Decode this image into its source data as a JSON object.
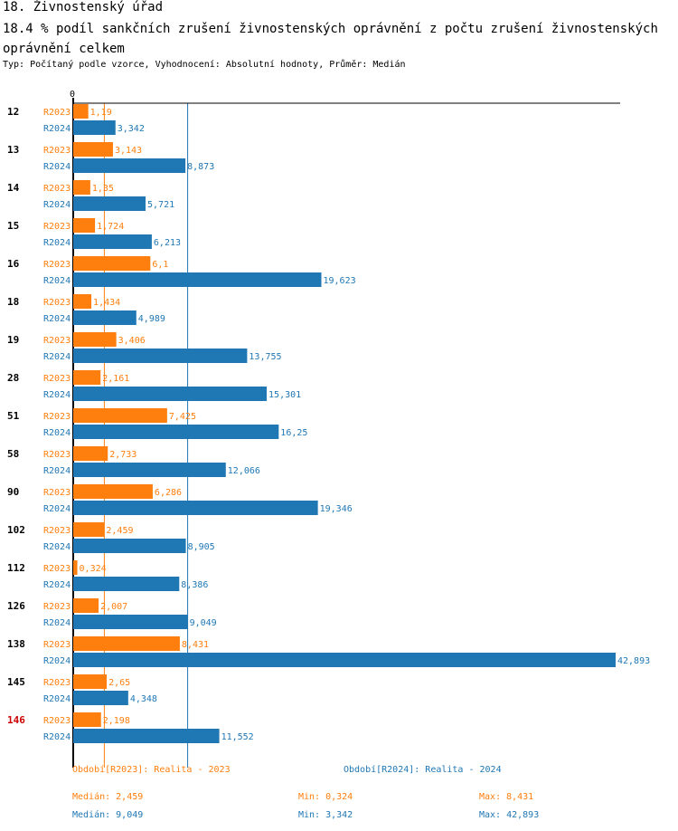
{
  "header": {
    "title": "18. Živnostenský úřad",
    "subtitle": "18.4 % podíl sankčních zrušení živnostenských oprávnění z počtu zrušení živnostenských oprávnění  celkem",
    "type_line": "Typ: Počítaný podle vzorce, Vyhodnocení: Absolutní hodnoty, Průměr: Medián"
  },
  "colors": {
    "r2023": "#ff7f0e",
    "r2024": "#1f77b4",
    "highlight": "#cc0000"
  },
  "chart_data": {
    "type": "bar",
    "orientation": "horizontal",
    "axis_zero_label": "0",
    "xlim": [
      0,
      42.893
    ],
    "categories": [
      "12",
      "13",
      "14",
      "15",
      "16",
      "18",
      "19",
      "28",
      "51",
      "58",
      "90",
      "102",
      "112",
      "126",
      "138",
      "145",
      "146"
    ],
    "highlighted_category": "146",
    "series": [
      {
        "name": "R2023",
        "values": [
          1.19,
          3.143,
          1.35,
          1.724,
          6.1,
          1.434,
          3.406,
          2.161,
          7.425,
          2.733,
          6.286,
          2.459,
          0.324,
          2.007,
          8.431,
          2.65,
          2.198
        ],
        "labels": [
          "1,19",
          "3,143",
          "1,35",
          "1,724",
          "6,1",
          "1,434",
          "3,406",
          "2,161",
          "7,425",
          "2,733",
          "6,286",
          "2,459",
          "0,324",
          "2,007",
          "8,431",
          "2,65",
          "2,198"
        ],
        "median": 2.459
      },
      {
        "name": "R2024",
        "values": [
          3.342,
          8.873,
          5.721,
          6.213,
          19.623,
          4.989,
          13.755,
          15.301,
          16.25,
          12.066,
          19.346,
          8.905,
          8.386,
          9.049,
          42.893,
          4.348,
          11.552
        ],
        "labels": [
          "3,342",
          "8,873",
          "5,721",
          "6,213",
          "19,623",
          "4,989",
          "13,755",
          "15,301",
          "16,25",
          "12,066",
          "19,346",
          "8,905",
          "8,386",
          "9,049",
          "42,893",
          "4,348",
          "11,552"
        ],
        "median": 9.049
      }
    ]
  },
  "legend": {
    "r2023_label": "Období[R2023]: Realita - 2023",
    "r2024_label": "Období[R2024]: Realita - 2024",
    "r2023_median": "Medián: 2,459",
    "r2023_min": "Min: 0,324",
    "r2023_max": "Max: 8,431",
    "r2024_median": "Medián: 9,049",
    "r2024_min": "Min: 3,342",
    "r2024_max": "Max: 42,893"
  }
}
